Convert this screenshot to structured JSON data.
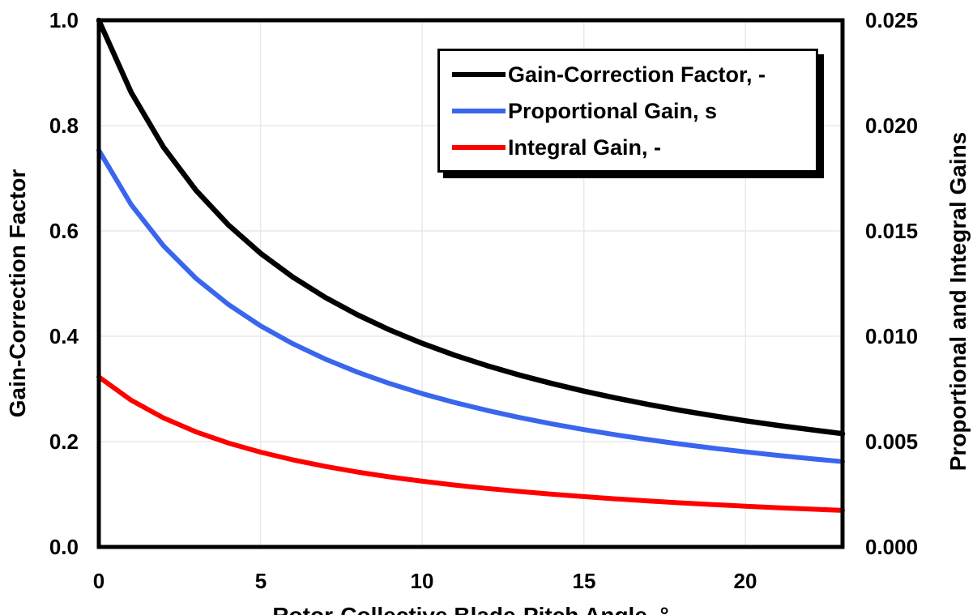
{
  "chart_data": {
    "type": "line",
    "x": [
      0,
      1,
      2,
      3,
      4,
      5,
      6,
      7,
      8,
      9,
      10,
      11,
      12,
      13,
      14,
      15,
      16,
      17,
      18,
      19,
      20,
      21,
      22,
      23
    ],
    "series": [
      {
        "name": "Gain-Correction Factor, -",
        "axis": "left",
        "color": "#000000",
        "width": 6.5,
        "values": [
          1.0,
          0.8631,
          0.7591,
          0.6775,
          0.6117,
          0.5576,
          0.5123,
          0.4738,
          0.4407,
          0.4119,
          0.3866,
          0.3642,
          0.3443,
          0.3265,
          0.3104,
          0.2959,
          0.2826,
          0.2705,
          0.2593,
          0.2491,
          0.2396,
          0.2308,
          0.2227,
          0.2151
        ]
      },
      {
        "name": "Proportional Gain, s",
        "axis": "right",
        "color": "#3A66EE",
        "width": 6,
        "values": [
          0.018827,
          0.016249,
          0.014291,
          0.012755,
          0.011517,
          0.010498,
          0.009645,
          0.00892,
          0.008296,
          0.007754,
          0.007278,
          0.006858,
          0.006483,
          0.006147,
          0.005844,
          0.00557,
          0.00532,
          0.005092,
          0.004882,
          0.004689,
          0.004511,
          0.004346,
          0.004192,
          0.004049
        ]
      },
      {
        "name": "Integral Gain, -",
        "axis": "right",
        "color": "#FF0000",
        "width": 6,
        "values": [
          0.008069,
          0.006964,
          0.006125,
          0.005466,
          0.004936,
          0.004499,
          0.004133,
          0.003823,
          0.003555,
          0.003323,
          0.003119,
          0.002939,
          0.002778,
          0.002634,
          0.002505,
          0.002387,
          0.00228,
          0.002182,
          0.002093,
          0.00201,
          0.001933,
          0.001862,
          0.001797,
          0.001735
        ]
      }
    ],
    "xlabel": "Rotor-Collective Blade-Pitch Angle, °",
    "ylabel_left": "Gain-Correction Factor",
    "ylabel_right": "Proportional and Integral Gains",
    "xlim": [
      0,
      23
    ],
    "ylim_left": [
      0.0,
      1.0
    ],
    "ylim_right": [
      0.0,
      0.025
    ],
    "grid": true,
    "legend_position": "top-center",
    "x_ticks": [
      "0",
      "5",
      "10",
      "15",
      "20"
    ],
    "x_tick_values": [
      0,
      5,
      10,
      15,
      20
    ],
    "y_ticks_left": [
      "1.0",
      "0.8",
      "0.6",
      "0.4",
      "0.2",
      "0.0"
    ],
    "y_tick_values_left": [
      1.0,
      0.8,
      0.6,
      0.4,
      0.2,
      0.0
    ],
    "y_ticks_right": [
      "0.025",
      "0.020",
      "0.015",
      "0.010",
      "0.005",
      "0.000"
    ],
    "y_tick_values_right": [
      0.025,
      0.02,
      0.015,
      0.01,
      0.005,
      0.0
    ]
  },
  "colors": {
    "grid": "#E9E9E9",
    "axis": "#000000",
    "background": "#FFFFFF",
    "legend_border": "#000000",
    "legend_shadow": "#000000"
  }
}
